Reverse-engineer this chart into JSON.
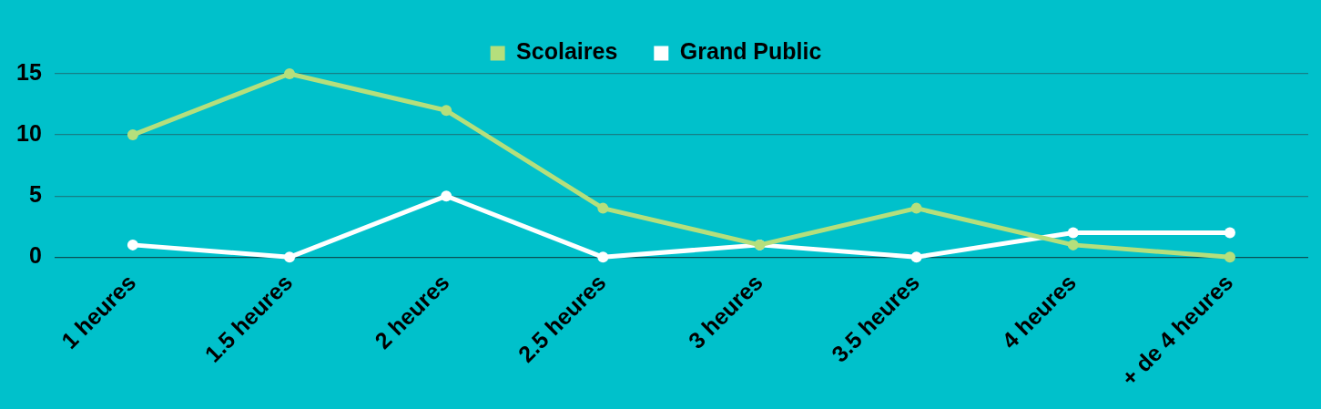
{
  "chart_data": {
    "type": "line",
    "categories": [
      "1 heures",
      "1.5 heures",
      "2 heures",
      "2.5 heures",
      "3 heures",
      "3.5 heures",
      "4 heures",
      "+ de 4 heures"
    ],
    "series": [
      {
        "name": "Scolaires",
        "color": "#b5df7c",
        "values": [
          10,
          15,
          12,
          4,
          1,
          4,
          1,
          0
        ]
      },
      {
        "name": "Grand Public",
        "color": "#ffffff",
        "values": [
          1,
          0,
          5,
          0,
          1,
          0,
          2,
          2
        ]
      }
    ],
    "ylim": [
      0,
      15
    ],
    "yticks": [
      0,
      5,
      10,
      15
    ],
    "grid": "y",
    "legend": "top",
    "marker": "circle",
    "line_style": "solid"
  }
}
